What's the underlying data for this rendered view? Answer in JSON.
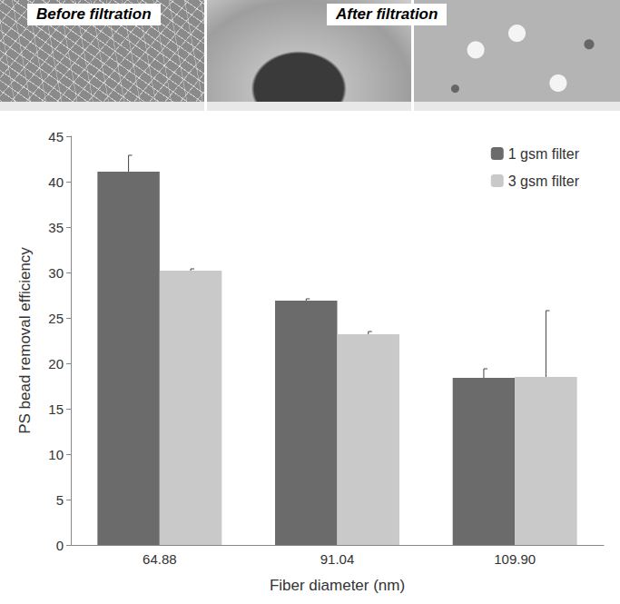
{
  "photos": {
    "before_label": "Before filtration",
    "after_label": "After filtration"
  },
  "chart_data": {
    "type": "bar",
    "categories": [
      "64.88",
      "91.04",
      "109.90"
    ],
    "series": [
      {
        "name": "1 gsm filter",
        "color": "#6b6b6b",
        "values": [
          41.1,
          26.9,
          18.4
        ],
        "errors": [
          1.8,
          0.2,
          1.0
        ]
      },
      {
        "name": "3 gsm filter",
        "color": "#c9c9c9",
        "values": [
          30.2,
          23.2,
          18.5
        ],
        "errors": [
          0.2,
          0.3,
          7.3
        ]
      }
    ],
    "x_label": "Fiber diameter (nm)",
    "y_label": "PS bead removal efficiency",
    "ylim": [
      0,
      45
    ],
    "yticks": [
      0,
      5,
      10,
      15,
      20,
      25,
      30,
      35,
      40,
      45
    ],
    "grid": false,
    "legend": "upper right"
  }
}
